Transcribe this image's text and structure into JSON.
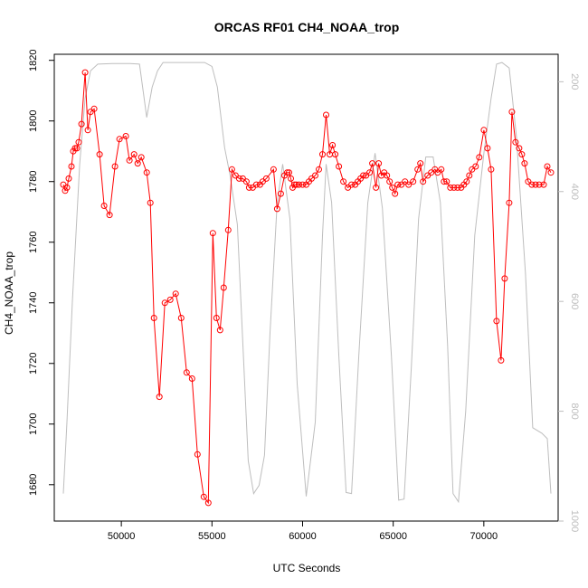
{
  "chart_data": {
    "type": "line",
    "title": "ORCAS RF01 CH4_NOAA_trop",
    "xlabel": "UTC Seconds",
    "ylabel": "CH4_NOAA_trop",
    "xlim": [
      46300,
      74100
    ],
    "ylim": [
      1668,
      1822
    ],
    "y2lim": [
      1000,
      150
    ],
    "x_ticks": [
      50000,
      55000,
      60000,
      65000,
      70000
    ],
    "x_tick_labels": [
      "50000",
      "55000",
      "60000",
      "65000",
      "70000"
    ],
    "y_ticks": [
      1680,
      1700,
      1720,
      1740,
      1760,
      1780,
      1800,
      1820
    ],
    "y_tick_labels": [
      "1680",
      "1700",
      "1720",
      "1740",
      "1760",
      "1780",
      "1800",
      "1820"
    ],
    "y2_ticks": [
      200,
      400,
      600,
      800,
      1000
    ],
    "y2_tick_labels": [
      "200",
      "400",
      "600",
      "800",
      "1000"
    ],
    "colors": {
      "ch4": "#ff0000",
      "secondary": "#bebebe"
    },
    "grid": false,
    "series": [
      {
        "values": [
          [
            46800,
            1779
          ],
          [
            46900,
            1777
          ],
          [
            47000,
            1778
          ],
          [
            47100,
            1781
          ],
          [
            47250,
            1785
          ],
          [
            47350,
            1790
          ],
          [
            47450,
            1791
          ],
          [
            47550,
            1791
          ],
          [
            47650,
            1793
          ],
          [
            47800,
            1799
          ],
          [
            48000,
            1816
          ],
          [
            48150,
            1797
          ],
          [
            48300,
            1803
          ],
          [
            48500,
            1804
          ],
          [
            48800,
            1789
          ],
          [
            49050,
            1772
          ],
          [
            49350,
            1769
          ],
          [
            49650,
            1785
          ],
          [
            49900,
            1794
          ],
          [
            50250,
            1795
          ],
          [
            50450,
            1787
          ],
          [
            50700,
            1789
          ],
          [
            50900,
            1786
          ],
          [
            51100,
            1788
          ],
          [
            51400,
            1783
          ],
          [
            51600,
            1773
          ],
          [
            51800,
            1735
          ],
          [
            52100,
            1709
          ],
          [
            52400,
            1740
          ],
          [
            52700,
            1741
          ],
          [
            53000,
            1743
          ],
          [
            53300,
            1735
          ],
          [
            53600,
            1717
          ],
          [
            53900,
            1715
          ],
          [
            54200,
            1690
          ],
          [
            54550,
            1676
          ],
          [
            54800,
            1674
          ],
          [
            55050,
            1763
          ],
          [
            55250,
            1735
          ],
          [
            55450,
            1731
          ],
          [
            55650,
            1745
          ],
          [
            55900,
            1764
          ],
          [
            56100,
            1784
          ],
          [
            56300,
            1782
          ],
          [
            56500,
            1781
          ],
          [
            56700,
            1781
          ],
          [
            56900,
            1780
          ],
          [
            57050,
            1778
          ],
          [
            57250,
            1778
          ],
          [
            57450,
            1779
          ],
          [
            57650,
            1779
          ],
          [
            57800,
            1780
          ],
          [
            58000,
            1781
          ],
          [
            58400,
            1784
          ],
          [
            58600,
            1771
          ],
          [
            58800,
            1776
          ],
          [
            59000,
            1782
          ],
          [
            59150,
            1783
          ],
          [
            59250,
            1783
          ],
          [
            59350,
            1781
          ],
          [
            59450,
            1778
          ],
          [
            59550,
            1779
          ],
          [
            59650,
            1779
          ],
          [
            59800,
            1779
          ],
          [
            60000,
            1779
          ],
          [
            60200,
            1779
          ],
          [
            60350,
            1780
          ],
          [
            60500,
            1781
          ],
          [
            60700,
            1782
          ],
          [
            60900,
            1784
          ],
          [
            61100,
            1789
          ],
          [
            61300,
            1802
          ],
          [
            61500,
            1789
          ],
          [
            61650,
            1792
          ],
          [
            61800,
            1789
          ],
          [
            62000,
            1785
          ],
          [
            62250,
            1780
          ],
          [
            62500,
            1778
          ],
          [
            62700,
            1779
          ],
          [
            62900,
            1779
          ],
          [
            63050,
            1780
          ],
          [
            63200,
            1781
          ],
          [
            63350,
            1782
          ],
          [
            63500,
            1782
          ],
          [
            63700,
            1783
          ],
          [
            63850,
            1786
          ],
          [
            64050,
            1778
          ],
          [
            64200,
            1786
          ],
          [
            64350,
            1782
          ],
          [
            64500,
            1783
          ],
          [
            64650,
            1782
          ],
          [
            64800,
            1780
          ],
          [
            64950,
            1778
          ],
          [
            65100,
            1776
          ],
          [
            65250,
            1779
          ],
          [
            65450,
            1779
          ],
          [
            65650,
            1780
          ],
          [
            65850,
            1779
          ],
          [
            66100,
            1780
          ],
          [
            66350,
            1784
          ],
          [
            66500,
            1786
          ],
          [
            66650,
            1780
          ],
          [
            66900,
            1782
          ],
          [
            67100,
            1783
          ],
          [
            67300,
            1784
          ],
          [
            67450,
            1783
          ],
          [
            67650,
            1784
          ],
          [
            67800,
            1780
          ],
          [
            67950,
            1780
          ],
          [
            68150,
            1778
          ],
          [
            68350,
            1778
          ],
          [
            68550,
            1778
          ],
          [
            68750,
            1778
          ],
          [
            68900,
            1779
          ],
          [
            69050,
            1780
          ],
          [
            69200,
            1782
          ],
          [
            69350,
            1784
          ],
          [
            69550,
            1785
          ],
          [
            69750,
            1788
          ],
          [
            70000,
            1797
          ],
          [
            70200,
            1791
          ],
          [
            70400,
            1784
          ],
          [
            70700,
            1734
          ],
          [
            70950,
            1721
          ],
          [
            71150,
            1748
          ],
          [
            71400,
            1773
          ],
          [
            71550,
            1803
          ],
          [
            71750,
            1793
          ],
          [
            71950,
            1791
          ],
          [
            72100,
            1789
          ],
          [
            72250,
            1786
          ],
          [
            72450,
            1780
          ],
          [
            72650,
            1779
          ],
          [
            72850,
            1779
          ],
          [
            73050,
            1779
          ],
          [
            73300,
            1779
          ],
          [
            73500,
            1785
          ],
          [
            73700,
            1783
          ]
        ]
      },
      {
        "axis": "right",
        "values": [
          [
            46800,
            950
          ],
          [
            47000,
            820
          ],
          [
            47300,
            600
          ],
          [
            47700,
            350
          ],
          [
            48000,
            230
          ],
          [
            48300,
            180
          ],
          [
            48700,
            168
          ],
          [
            49500,
            167
          ],
          [
            50500,
            167
          ],
          [
            51000,
            168
          ],
          [
            51400,
            265
          ],
          [
            51700,
            210
          ],
          [
            52000,
            180
          ],
          [
            52300,
            165
          ],
          [
            53000,
            165
          ],
          [
            53800,
            165
          ],
          [
            54600,
            165
          ],
          [
            55000,
            172
          ],
          [
            55300,
            210
          ],
          [
            55700,
            320
          ],
          [
            56000,
            370
          ],
          [
            56400,
            460
          ],
          [
            57000,
            890
          ],
          [
            57300,
            950
          ],
          [
            57600,
            935
          ],
          [
            57900,
            880
          ],
          [
            58200,
            660
          ],
          [
            58600,
            420
          ],
          [
            58900,
            350
          ],
          [
            59300,
            450
          ],
          [
            59700,
            750
          ],
          [
            60200,
            955
          ],
          [
            60700,
            820
          ],
          [
            61100,
            480
          ],
          [
            61300,
            350
          ],
          [
            61600,
            420
          ],
          [
            62000,
            700
          ],
          [
            62400,
            948
          ],
          [
            62700,
            950
          ],
          [
            63100,
            700
          ],
          [
            63600,
            420
          ],
          [
            64000,
            330
          ],
          [
            64400,
            430
          ],
          [
            64900,
            700
          ],
          [
            65300,
            962
          ],
          [
            65600,
            960
          ],
          [
            66000,
            720
          ],
          [
            66400,
            450
          ],
          [
            66800,
            337
          ],
          [
            67200,
            337
          ],
          [
            67600,
            420
          ],
          [
            68000,
            680
          ],
          [
            68300,
            950
          ],
          [
            68600,
            965
          ],
          [
            69000,
            800
          ],
          [
            69500,
            480
          ],
          [
            70000,
            330
          ],
          [
            70400,
            230
          ],
          [
            70700,
            168
          ],
          [
            71000,
            165
          ],
          [
            71400,
            175
          ],
          [
            71800,
            300
          ],
          [
            72300,
            550
          ],
          [
            72700,
            830
          ],
          [
            73200,
            840
          ],
          [
            73500,
            850
          ],
          [
            73700,
            950
          ]
        ]
      }
    ]
  }
}
